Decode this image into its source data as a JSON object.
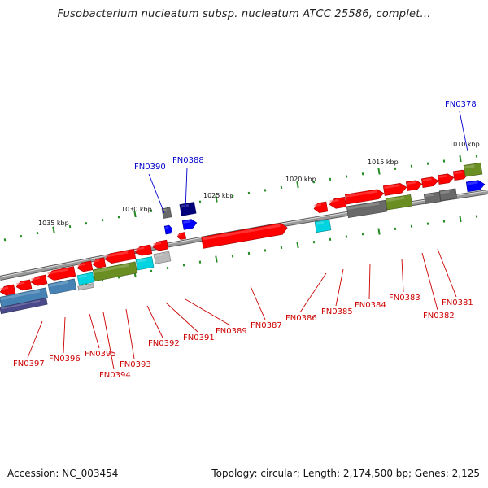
{
  "title": "Fusobacterium nucleatum subsp. nucleatum ATCC 25586, complet...",
  "footer": {
    "accession": "Accession: NC_003454",
    "summary": "Topology: circular; Length: 2,174,500 bp; Genes: 2,125"
  },
  "colors": {
    "red": "#ff0000",
    "blue": "#0000ff",
    "navy": "#00007a",
    "steel": "#4682b4",
    "cyan": "#00d4e0",
    "olive": "#6b8e23",
    "gray": "#696969",
    "light-gray": "#b8b8b8",
    "slate": "#4a4a8a",
    "backbone": "#8c8c8c",
    "tick": "#228b22",
    "label-red": "#cc0000",
    "label-blue": "#0000cc"
  },
  "scale_labels": [
    "1035 kbp",
    "1030 kbp",
    "1025 kbp",
    "1020 kbp",
    "1015 kbp",
    "1010 kbp"
  ],
  "gene_labels": [
    {
      "text": "FN0397",
      "color": "label-red"
    },
    {
      "text": "FN0396",
      "color": "label-red"
    },
    {
      "text": "FN0395",
      "color": "label-red"
    },
    {
      "text": "FN0394",
      "color": "label-red"
    },
    {
      "text": "FN0393",
      "color": "label-red"
    },
    {
      "text": "FN0392",
      "color": "label-red"
    },
    {
      "text": "FN0391",
      "color": "label-red"
    },
    {
      "text": "FN0389",
      "color": "label-red"
    },
    {
      "text": "FN0387",
      "color": "label-red"
    },
    {
      "text": "FN0386",
      "color": "label-red"
    },
    {
      "text": "FN0385",
      "color": "label-red"
    },
    {
      "text": "FN0384",
      "color": "label-red"
    },
    {
      "text": "FN0383",
      "color": "label-red"
    },
    {
      "text": "FN0382",
      "color": "label-red"
    },
    {
      "text": "FN0381",
      "color": "label-red"
    },
    {
      "text": "FN0390",
      "color": "label-blue"
    },
    {
      "text": "FN0388",
      "color": "label-blue"
    },
    {
      "text": "FN0378",
      "color": "label-blue"
    }
  ]
}
